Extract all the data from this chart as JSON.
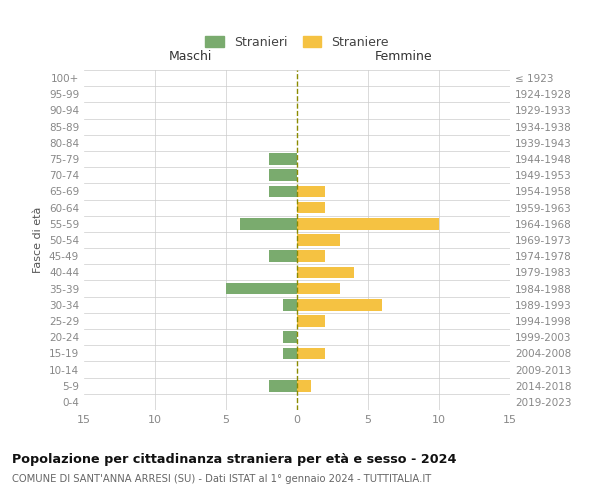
{
  "age_groups": [
    "0-4",
    "5-9",
    "10-14",
    "15-19",
    "20-24",
    "25-29",
    "30-34",
    "35-39",
    "40-44",
    "45-49",
    "50-54",
    "55-59",
    "60-64",
    "65-69",
    "70-74",
    "75-79",
    "80-84",
    "85-89",
    "90-94",
    "95-99",
    "100+"
  ],
  "birth_years": [
    "2019-2023",
    "2014-2018",
    "2009-2013",
    "2004-2008",
    "1999-2003",
    "1994-1998",
    "1989-1993",
    "1984-1988",
    "1979-1983",
    "1974-1978",
    "1969-1973",
    "1964-1968",
    "1959-1963",
    "1954-1958",
    "1949-1953",
    "1944-1948",
    "1939-1943",
    "1934-1938",
    "1929-1933",
    "1924-1928",
    "≤ 1923"
  ],
  "males": [
    0,
    2,
    0,
    1,
    1,
    0,
    1,
    5,
    0,
    2,
    0,
    4,
    0,
    2,
    2,
    2,
    0,
    0,
    0,
    0,
    0
  ],
  "females": [
    0,
    1,
    0,
    2,
    0,
    2,
    6,
    3,
    4,
    2,
    3,
    10,
    2,
    2,
    0,
    0,
    0,
    0,
    0,
    0,
    0
  ],
  "male_color": "#7aab6e",
  "female_color": "#f5c242",
  "bar_height": 0.72,
  "xlim": 15,
  "title": "Popolazione per cittadinanza straniera per età e sesso - 2024",
  "subtitle": "COMUNE DI SANT'ANNA ARRESI (SU) - Dati ISTAT al 1° gennaio 2024 - TUTTITALIA.IT",
  "ylabel_left": "Fasce di età",
  "xlabel_maschi": "Maschi",
  "xlabel_femmine": "Femmine",
  "legend_stranieri": "Stranieri",
  "legend_straniere": "Straniere",
  "bg_color": "#ffffff",
  "grid_color": "#cccccc",
  "tick_color": "#888888",
  "axis_label_color": "#555555",
  "center_line_color": "#8b8b00"
}
